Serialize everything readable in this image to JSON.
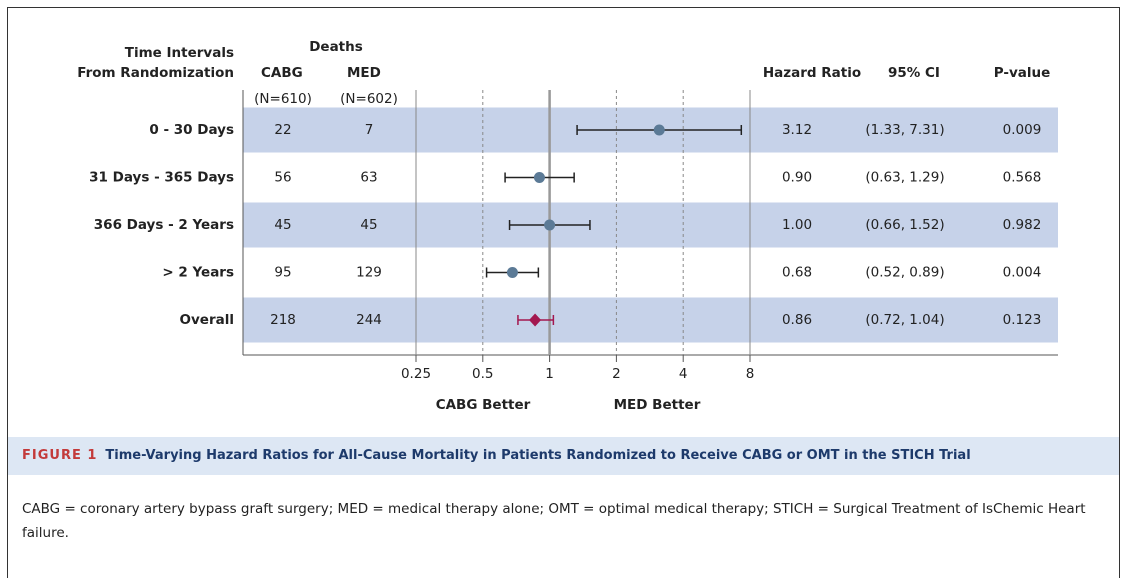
{
  "chart_data": {
    "type": "forest",
    "row_header": [
      "Time Intervals",
      "From Randomization"
    ],
    "deaths_header": "Deaths",
    "deaths": [
      {
        "name": "CABG",
        "n_label": "(N=610)",
        "values": [
          22,
          56,
          45,
          95,
          218
        ]
      },
      {
        "name": "MED",
        "n_label": "(N=602)",
        "values": [
          7,
          63,
          45,
          129,
          244
        ]
      }
    ],
    "hr_header": "Hazard Ratio",
    "ci_header": "95% CI",
    "p_header": "P-value",
    "categories": [
      "0 - 30 Days",
      "31 Days - 365 Days",
      "366 Days - 2 Years",
      "> 2 Years",
      "Overall"
    ],
    "values": [
      3.12,
      0.9,
      1.0,
      0.68,
      0.86
    ],
    "value_labels": [
      "3.12",
      "0.90",
      "1.00",
      "0.68",
      "0.86"
    ],
    "ci_low": [
      1.33,
      0.63,
      0.66,
      0.52,
      0.72
    ],
    "ci_high": [
      7.31,
      1.29,
      1.52,
      0.89,
      1.04
    ],
    "ci_labels": [
      "(1.33, 7.31)",
      "(0.63, 1.29)",
      "(0.66, 1.52)",
      "(0.52, 0.89)",
      "(0.72, 1.04)"
    ],
    "p_values": [
      0.009,
      0.568,
      0.982,
      0.004,
      0.123
    ],
    "markers": [
      "circle",
      "circle",
      "circle",
      "circle",
      "diamond"
    ],
    "colors": [
      "#5b7a96",
      "#5b7a96",
      "#5b7a96",
      "#5b7a96",
      "#a3174f"
    ],
    "stripe_color": "#c6d2e9",
    "log_x": true,
    "xlim": [
      0.25,
      8
    ],
    "xticks": [
      0.25,
      0.5,
      1,
      2,
      4,
      8
    ],
    "reference": 1,
    "grid": true,
    "x_annotations": [
      "CABG Better",
      "MED Better"
    ]
  },
  "figure": {
    "label": "FIGURE 1",
    "title": "Time-Varying Hazard Ratios for All-Cause Mortality in Patients Randomized to Receive CABG or OMT in the STICH Trial",
    "note": "CABG = coronary artery bypass graft surgery; MED = medical therapy alone; OMT = optimal medical therapy; STICH = Surgical Treatment of IsChemic Heart failure."
  }
}
